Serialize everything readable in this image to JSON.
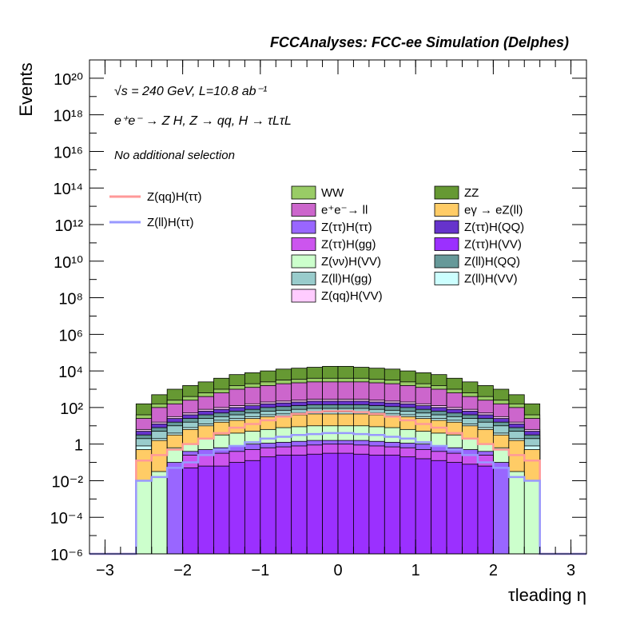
{
  "header": {
    "title": "FCCAnalyses: FCC-ee Simulation (Delphes)",
    "energy_line": "√s = 240 GeV, L=10.8 ab⁻¹",
    "process_line": "e⁺e⁻ → Z H, Z → qq, H → τLτL",
    "selection_line": "No additional selection"
  },
  "chart_data": {
    "type": "area",
    "stacked": true,
    "log_y": true,
    "grid": false,
    "xlabel": "τleading η",
    "ylabel": "Events",
    "xlim": [
      -3.2,
      3.2
    ],
    "ylim": [
      1e-06,
      1e+21
    ],
    "x_ticks": [
      "−3",
      "−2",
      "−1",
      "0",
      "1",
      "2",
      "3"
    ],
    "y_ticks": [
      "10⁻⁶",
      "10⁻⁴",
      "10⁻²",
      "1",
      "10²",
      "10⁴",
      "10⁶",
      "10⁸",
      "10¹⁰",
      "10¹²",
      "10¹⁴",
      "10¹⁶",
      "10¹⁸",
      "10²⁰"
    ],
    "bin_edges": [
      -2.6,
      -2.4,
      -2.2,
      -2.0,
      -1.8,
      -1.6,
      -1.4,
      -1.2,
      -1.0,
      -0.8,
      -0.6,
      -0.4,
      -0.2,
      0.0,
      0.2,
      0.4,
      0.6,
      0.8,
      1.0,
      1.2,
      1.4,
      1.6,
      1.8,
      2.0,
      2.2,
      2.4,
      2.6
    ],
    "stack_levels": [
      {
        "name": "Z(ττ)H(VV)",
        "color": "#9b30ff",
        "log10_top": [
          null,
          null,
          null,
          -1.3,
          -1.2,
          -1.2,
          -1.0,
          -0.9,
          -0.7,
          -0.6,
          -0.6,
          -0.55,
          -0.5,
          -0.5,
          -0.55,
          -0.6,
          -0.6,
          -0.7,
          -0.8,
          -0.9,
          -1.0,
          -1.1,
          -1.2,
          null,
          null,
          null
        ]
      },
      {
        "name": "Z(ττ)H(gg)",
        "color": "#cc55ee",
        "log10_top": [
          null,
          null,
          null,
          -0.6,
          -0.6,
          -0.5,
          -0.4,
          -0.3,
          -0.2,
          -0.15,
          -0.1,
          -0.05,
          0.0,
          0.0,
          -0.05,
          -0.1,
          -0.15,
          -0.2,
          -0.3,
          -0.4,
          -0.5,
          -0.6,
          -0.6,
          null,
          null,
          null
        ]
      },
      {
        "name": "Z(ττ)H(ττ)",
        "color": "#9966ff",
        "log10_top": [
          null,
          null,
          -1.0,
          -0.4,
          -0.3,
          -0.2,
          -0.1,
          0.0,
          0.05,
          0.1,
          0.15,
          0.2,
          0.2,
          0.2,
          0.2,
          0.15,
          0.1,
          0.05,
          0.0,
          -0.1,
          -0.2,
          -0.3,
          -0.4,
          -1.0,
          null,
          null
        ]
      },
      {
        "name": "Z(νν)H(VV)",
        "color": "#ccffcc",
        "log10_top": [
          -2.0,
          -1.5,
          -0.2,
          0.0,
          0.3,
          0.5,
          0.6,
          0.7,
          0.8,
          0.9,
          0.95,
          1.0,
          1.0,
          1.0,
          1.0,
          0.95,
          0.9,
          0.8,
          0.7,
          0.6,
          0.5,
          0.3,
          0.0,
          -0.2,
          -1.5,
          -2.0
        ]
      },
      {
        "name": "eγ → eZ(ll)",
        "color": "#ffcc66",
        "log10_top": [
          -0.3,
          0.2,
          0.5,
          0.8,
          1.0,
          1.2,
          1.3,
          1.4,
          1.5,
          1.55,
          1.6,
          1.65,
          1.65,
          1.65,
          1.65,
          1.6,
          1.55,
          1.5,
          1.4,
          1.3,
          1.2,
          1.0,
          0.8,
          0.5,
          0.2,
          -0.3
        ]
      },
      {
        "name": "Z(ll)H(VV)",
        "color": "#ccffff",
        "log10_top": [
          -0.1,
          0.3,
          0.6,
          0.9,
          1.1,
          1.3,
          1.4,
          1.5,
          1.6,
          1.65,
          1.7,
          1.75,
          1.75,
          1.75,
          1.75,
          1.7,
          1.65,
          1.6,
          1.5,
          1.4,
          1.3,
          1.1,
          0.9,
          0.6,
          0.3,
          -0.1
        ]
      },
      {
        "name": "Z(ll)H(gg)",
        "color": "#99cccc",
        "log10_top": [
          0.3,
          0.7,
          1.0,
          1.2,
          1.4,
          1.5,
          1.6,
          1.7,
          1.8,
          1.85,
          1.9,
          1.95,
          1.95,
          1.95,
          1.95,
          1.9,
          1.85,
          1.8,
          1.7,
          1.6,
          1.5,
          1.4,
          1.2,
          1.0,
          0.7,
          0.3
        ]
      },
      {
        "name": "Z(ll)H(QQ)",
        "color": "#669999",
        "log10_top": [
          0.5,
          0.9,
          1.2,
          1.4,
          1.6,
          1.7,
          1.8,
          1.9,
          2.0,
          2.05,
          2.1,
          2.15,
          2.15,
          2.15,
          2.15,
          2.1,
          2.05,
          2.0,
          1.9,
          1.8,
          1.7,
          1.6,
          1.4,
          1.2,
          0.9,
          0.5
        ]
      },
      {
        "name": "Z(ττ)H(QQ)",
        "color": "#6633cc",
        "log10_top": [
          0.7,
          1.1,
          1.4,
          1.6,
          1.8,
          1.9,
          2.0,
          2.1,
          2.2,
          2.25,
          2.3,
          2.35,
          2.35,
          2.35,
          2.35,
          2.3,
          2.25,
          2.2,
          2.1,
          2.0,
          1.9,
          1.8,
          1.6,
          1.4,
          1.1,
          0.7
        ]
      },
      {
        "name": "Z(qq)H(VV)",
        "color": "#ffccff",
        "log10_top": [
          0.8,
          1.2,
          1.5,
          1.7,
          1.9,
          2.0,
          2.1,
          2.2,
          2.3,
          2.35,
          2.4,
          2.45,
          2.45,
          2.45,
          2.45,
          2.4,
          2.35,
          2.3,
          2.2,
          2.1,
          2.0,
          1.9,
          1.7,
          1.5,
          1.2,
          0.8
        ]
      },
      {
        "name": "e⁺e⁻→ ll",
        "color": "#cc66cc",
        "log10_top": [
          1.4,
          2.0,
          2.2,
          2.4,
          2.6,
          2.8,
          3.0,
          3.1,
          3.2,
          3.3,
          3.35,
          3.4,
          3.4,
          3.4,
          3.4,
          3.35,
          3.3,
          3.2,
          3.1,
          3.0,
          2.8,
          2.6,
          2.4,
          2.2,
          2.0,
          1.4
        ]
      },
      {
        "name": "WW",
        "color": "#99cc66",
        "log10_top": [
          1.6,
          2.2,
          2.4,
          2.6,
          2.8,
          3.0,
          3.2,
          3.3,
          3.4,
          3.5,
          3.55,
          3.6,
          3.6,
          3.6,
          3.6,
          3.55,
          3.5,
          3.4,
          3.3,
          3.2,
          3.0,
          2.8,
          2.6,
          2.4,
          2.2,
          1.6
        ]
      },
      {
        "name": "ZZ",
        "color": "#669933",
        "log10_top": [
          2.2,
          2.7,
          3.0,
          3.2,
          3.4,
          3.6,
          3.8,
          3.9,
          4.0,
          4.1,
          4.15,
          4.2,
          4.25,
          4.25,
          4.2,
          4.15,
          4.1,
          4.0,
          3.9,
          3.8,
          3.6,
          3.4,
          3.2,
          3.0,
          2.7,
          2.2
        ]
      }
    ],
    "overlay_lines": [
      {
        "name": "Z(qq)H(ττ)",
        "color": "#ff9999",
        "log10_values": [
          -0.9,
          -0.6,
          -0.3,
          0.0,
          0.3,
          0.6,
          0.9,
          1.1,
          1.3,
          1.5,
          1.65,
          1.75,
          1.8,
          1.8,
          1.75,
          1.65,
          1.5,
          1.3,
          1.1,
          0.9,
          0.6,
          0.3,
          0.0,
          -0.3,
          -0.6,
          -0.9
        ]
      },
      {
        "name": "Z(ll)H(ττ)",
        "color": "#9999ff",
        "log10_values": [
          -2.0,
          -1.8,
          -1.3,
          -1.0,
          -0.6,
          -0.3,
          -0.1,
          0.1,
          0.3,
          0.4,
          0.5,
          0.55,
          0.6,
          0.6,
          0.55,
          0.5,
          0.4,
          0.3,
          0.1,
          -0.1,
          -0.3,
          -0.6,
          -1.0,
          -1.3,
          -1.8,
          -2.0
        ]
      }
    ],
    "legend": {
      "lines": [
        "Z(qq)H(ττ)",
        "Z(ll)H(ττ)"
      ],
      "fills_col1": [
        {
          "label": "WW",
          "color": "#99cc66"
        },
        {
          "label": "e⁺e⁻→ ll",
          "color": "#cc66cc"
        },
        {
          "label": "Z(ττ)H(ττ)",
          "color": "#9966ff"
        },
        {
          "label": "Z(ττ)H(gg)",
          "color": "#cc55ee"
        },
        {
          "label": "Z(νν)H(VV)",
          "color": "#ccffcc"
        },
        {
          "label": "Z(ll)H(gg)",
          "color": "#99cccc"
        },
        {
          "label": "Z(qq)H(VV)",
          "color": "#ffccff"
        }
      ],
      "fills_col2": [
        {
          "label": "ZZ",
          "color": "#669933"
        },
        {
          "label": "eγ → eZ(ll)",
          "color": "#ffcc66"
        },
        {
          "label": "Z(ττ)H(QQ)",
          "color": "#6633cc"
        },
        {
          "label": "Z(ττ)H(VV)",
          "color": "#9b30ff"
        },
        {
          "label": "Z(ll)H(QQ)",
          "color": "#669999"
        },
        {
          "label": "Z(ll)H(VV)",
          "color": "#ccffff"
        }
      ]
    }
  }
}
